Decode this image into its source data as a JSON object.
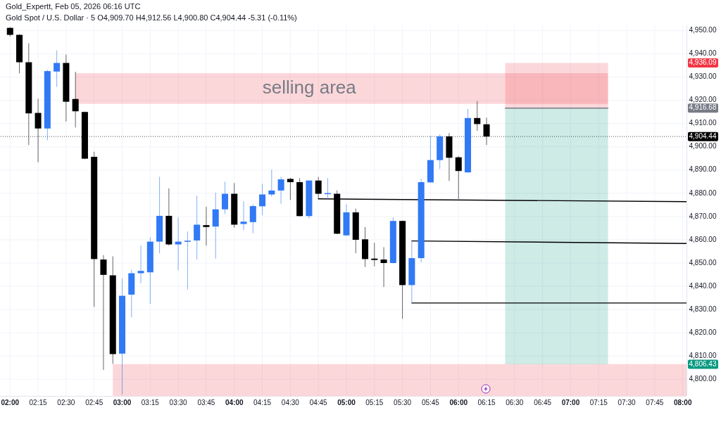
{
  "chart_data": {
    "type": "candlestick",
    "title": "Gold_Expertt, Feb 05, 2026 06:16 UTC",
    "subtitle": "Gold Spot / U.S. Dollar · 5  O4,909.70 H4,912.56 L4,900.80 C4,904.44 -5.31 (-0.11%)",
    "x": [
      "2026-02-05T02:00",
      "2026-02-05T02:05",
      "2026-02-05T02:10",
      "2026-02-05T02:15",
      "2026-02-05T02:20",
      "2026-02-05T02:25",
      "2026-02-05T02:30",
      "2026-02-05T02:35",
      "2026-02-05T02:40",
      "2026-02-05T02:45",
      "2026-02-05T02:50",
      "2026-02-05T02:55",
      "2026-02-05T03:00",
      "2026-02-05T03:05",
      "2026-02-05T03:10",
      "2026-02-05T03:15",
      "2026-02-05T03:20",
      "2026-02-05T03:25",
      "2026-02-05T03:30",
      "2026-02-05T03:35",
      "2026-02-05T03:40",
      "2026-02-05T03:45",
      "2026-02-05T03:50",
      "2026-02-05T03:55",
      "2026-02-05T04:00",
      "2026-02-05T04:05",
      "2026-02-05T04:10",
      "2026-02-05T04:15",
      "2026-02-05T04:20",
      "2026-02-05T04:25",
      "2026-02-05T04:30",
      "2026-02-05T04:35",
      "2026-02-05T04:40",
      "2026-02-05T04:45",
      "2026-02-05T04:50",
      "2026-02-05T04:55",
      "2026-02-05T05:00",
      "2026-02-05T05:05",
      "2026-02-05T05:10",
      "2026-02-05T05:15",
      "2026-02-05T05:20",
      "2026-02-05T05:25",
      "2026-02-05T05:30",
      "2026-02-05T05:35",
      "2026-02-05T05:40",
      "2026-02-05T05:45",
      "2026-02-05T05:50",
      "2026-02-05T05:55",
      "2026-02-05T06:00",
      "2026-02-05T06:05",
      "2026-02-05T06:10",
      "2026-02-05T06:15"
    ],
    "ohlc": [
      [
        4951.2,
        4951.5,
        4947.5,
        4948.2
      ],
      [
        4948.2,
        4948.5,
        4931.6,
        4936.4
      ],
      [
        4936.4,
        4944.6,
        4900.8,
        4914.4
      ],
      [
        4914.6,
        4920.7,
        4893.4,
        4907.9
      ],
      [
        4907.9,
        4933.2,
        4902.8,
        4932.6
      ],
      [
        4932.4,
        4941.5,
        4925.8,
        4936.1
      ],
      [
        4936.1,
        4939.7,
        4910.9,
        4919.4
      ],
      [
        4920.6,
        4932.3,
        4908.3,
        4915.3
      ],
      [
        4915.0,
        4915.2,
        4894.7,
        4894.9
      ],
      [
        4895.7,
        4897.9,
        4831.1,
        4851.7
      ],
      [
        4851.5,
        4853.4,
        4804.0,
        4844.9
      ],
      [
        4844.7,
        4852.9,
        4806.6,
        4810.8
      ],
      [
        4811.0,
        4843.4,
        4793.5,
        4835.9
      ],
      [
        4836.4,
        4847.1,
        4826.6,
        4845.6
      ],
      [
        4845.6,
        4857.5,
        4841.3,
        4846.6
      ],
      [
        4846.0,
        4861.1,
        4832.4,
        4859.2
      ],
      [
        4859.2,
        4887.1,
        4854.1,
        4870.3
      ],
      [
        4870.3,
        4882.1,
        4857.5,
        4858.0
      ],
      [
        4858.0,
        4869.6,
        4846.9,
        4859.2
      ],
      [
        4859.4,
        4863.6,
        4838.6,
        4859.6
      ],
      [
        4859.7,
        4879.0,
        4851.5,
        4866.5
      ],
      [
        4866.3,
        4874.2,
        4857.5,
        4865.5
      ],
      [
        4865.7,
        4880.3,
        4851.9,
        4873.1
      ],
      [
        4873.1,
        4885.0,
        4871.1,
        4879.8
      ],
      [
        4879.8,
        4884.4,
        4865.2,
        4866.5
      ],
      [
        4866.8,
        4876.6,
        4864.2,
        4867.8
      ],
      [
        4867.6,
        4875.2,
        4862.8,
        4874.5
      ],
      [
        4874.4,
        4884.1,
        4870.6,
        4879.5
      ],
      [
        4879.5,
        4890.2,
        4878.6,
        4881.2
      ],
      [
        4881.2,
        4887.1,
        4875.5,
        4886.0
      ],
      [
        4886.2,
        4886.6,
        4877.1,
        4884.8
      ],
      [
        4884.8,
        4886.5,
        4870.0,
        4870.2
      ],
      [
        4870.2,
        4885.5,
        4869.2,
        4885.5
      ],
      [
        4885.5,
        4887.1,
        4877.6,
        4879.8
      ],
      [
        4879.9,
        4886.5,
        4877.3,
        4880.1
      ],
      [
        4879.8,
        4881.3,
        4862.4,
        4862.6
      ],
      [
        4861.9,
        4875.2,
        4861.6,
        4871.8
      ],
      [
        4871.8,
        4873.4,
        4854.2,
        4860.0
      ],
      [
        4860.2,
        4865.5,
        4848.3,
        4851.7
      ],
      [
        4851.9,
        4858.7,
        4848.6,
        4851.3
      ],
      [
        4851.5,
        4856.8,
        4839.7,
        4850.0
      ],
      [
        4850.0,
        4869.6,
        4849.8,
        4868.1
      ],
      [
        4868.1,
        4868.3,
        4826.0,
        4840.5
      ],
      [
        4840.5,
        4859.5,
        4832.8,
        4852.1
      ],
      [
        4852.1,
        4886.3,
        4850.3,
        4884.8
      ],
      [
        4884.7,
        4904.7,
        4884.5,
        4894.3
      ],
      [
        4894.3,
        4905.4,
        4890.5,
        4904.5
      ],
      [
        4904.5,
        4905.9,
        4885.3,
        4895.3
      ],
      [
        4895.5,
        4896.0,
        4877.6,
        4889.6
      ],
      [
        4889.0,
        4916.3,
        4888.8,
        4912.4
      ],
      [
        4912.4,
        4919.7,
        4906.9,
        4909.8
      ],
      [
        4909.7,
        4912.56,
        4900.8,
        4904.44
      ]
    ],
    "colors": [
      "#000000",
      "#000000",
      "#000000",
      "#000000",
      "#3179f5",
      "#3179f5",
      "#000000",
      "#000000",
      "#000000",
      "#000000",
      "#000000",
      "#000000",
      "#3179f5",
      "#3179f5",
      "#3179f5",
      "#3179f5",
      "#3179f5",
      "#000000",
      "#3179f5",
      "#3179f5",
      "#3179f5",
      "#000000",
      "#3179f5",
      "#3179f5",
      "#000000",
      "#3179f5",
      "#3179f5",
      "#3179f5",
      "#3179f5",
      "#3179f5",
      "#000000",
      "#000000",
      "#3179f5",
      "#000000",
      "#3179f5",
      "#000000",
      "#3179f5",
      "#000000",
      "#000000",
      "#000000",
      "#000000",
      "#3179f5",
      "#000000",
      "#3179f5",
      "#3179f5",
      "#3179f5",
      "#3179f5",
      "#000000",
      "#000000",
      "#3179f5",
      "#000000",
      "#000000"
    ],
    "series": [
      {
        "type": "line",
        "color": "#f23645",
        "x": [
          "2026-02-05T02:35",
          "2026-02-05T07:20"
        ],
        "values": [
          null,
          null
        ],
        "lower": [
          4918.5,
          4918.5
        ],
        "upper": [
          4931.7,
          4931.7
        ]
      },
      {
        "type": "line",
        "color": "#f23645",
        "x": [
          "2026-02-05T02:55",
          "2026-02-05T08:02"
        ],
        "values": [
          null,
          null
        ],
        "lower": [
          4792.8,
          4792.8
        ],
        "upper": [
          4806.5,
          4806.5
        ]
      },
      {
        "type": "line",
        "color": "#f23645",
        "x": [
          "2026-02-05T06:25",
          "2026-02-05T07:20"
        ],
        "values": [
          null,
          null
        ],
        "lower": [
          4916.68,
          4916.68
        ],
        "upper": [
          4936.09,
          4936.09
        ]
      },
      {
        "type": "line",
        "color": "#787b86",
        "x": [
          "2026-02-05T06:25",
          "2026-02-05T07:20"
        ],
        "values": [
          4916.68,
          4916.68
        ]
      },
      {
        "type": "line",
        "color": "#089981",
        "x": [
          "2026-02-05T06:25",
          "2026-02-05T07:20"
        ],
        "values": [
          null,
          null
        ],
        "lower": [
          4806.43,
          4806.43
        ],
        "upper": [
          4916.68,
          4916.68
        ]
      },
      {
        "type": "line",
        "color": "#000000",
        "x": [
          "2026-02-05T04:45",
          "2026-02-05T08:02"
        ],
        "values": [
          4877.6,
          4876.4
        ]
      },
      {
        "type": "line",
        "color": "#000000",
        "x": [
          "2026-02-05T05:35",
          "2026-02-05T08:02"
        ],
        "values": [
          4859.5,
          4858.4
        ]
      },
      {
        "type": "line",
        "color": "#000000",
        "x": [
          "2026-02-05T05:35",
          "2026-02-05T08:02"
        ],
        "values": [
          4832.8,
          4832.8
        ]
      }
    ],
    "ref_lines": [
      {
        "axis": "y",
        "value": 4904.44,
        "label": "4,904.44",
        "color": "#000000",
        "line_style": "dotted"
      }
    ],
    "annotations": [
      "selling area",
      {
        "text": "4,936.09",
        "y": 4936.09
      },
      {
        "text": "4,916.68",
        "y": 4916.68
      },
      {
        "text": "4,806.43",
        "y": 4806.43
      }
    ],
    "xlim": [
      "2026-02-05T01:55",
      "2026-02-05T08:02"
    ],
    "xticks": [
      {
        "value": "2026-02-05T02:00",
        "label": "02:00"
      },
      {
        "value": "2026-02-05T02:15",
        "label": "02:15"
      },
      {
        "value": "2026-02-05T02:30",
        "label": "02:30"
      },
      {
        "value": "2026-02-05T02:45",
        "label": "02:45"
      },
      {
        "value": "2026-02-05T03:00",
        "label": "03:00"
      },
      {
        "value": "2026-02-05T03:15",
        "label": "03:15"
      },
      {
        "value": "2026-02-05T03:30",
        "label": "03:30"
      },
      {
        "value": "2026-02-05T03:45",
        "label": "03:45"
      },
      {
        "value": "2026-02-05T04:00",
        "label": "04:00"
      },
      {
        "value": "2026-02-05T04:15",
        "label": "04:15"
      },
      {
        "value": "2026-02-05T04:30",
        "label": "04:30"
      },
      {
        "value": "2026-02-05T04:45",
        "label": "04:45"
      },
      {
        "value": "2026-02-05T05:00",
        "label": "05:00"
      },
      {
        "value": "2026-02-05T05:15",
        "label": "05:15"
      },
      {
        "value": "2026-02-05T05:30",
        "label": "05:30"
      },
      {
        "value": "2026-02-05T05:45",
        "label": "05:45"
      },
      {
        "value": "2026-02-05T06:00",
        "label": "06:00"
      },
      {
        "value": "2026-02-05T06:15",
        "label": "06:15"
      },
      {
        "value": "2026-02-05T06:30",
        "label": "06:30"
      },
      {
        "value": "2026-02-05T06:45",
        "label": "06:45"
      },
      {
        "value": "2026-02-05T07:00",
        "label": "07:00"
      },
      {
        "value": "2026-02-05T07:15",
        "label": "07:15"
      },
      {
        "value": "2026-02-05T07:30",
        "label": "07:30"
      },
      {
        "value": "2026-02-05T07:45",
        "label": "07:45"
      },
      {
        "value": "2026-02-05T08:00",
        "label": "08:00"
      }
    ],
    "ylim": [
      4792.8,
      4952.3
    ],
    "yticks": [
      {
        "value": 4800,
        "label": "4,800.00"
      },
      {
        "value": 4810,
        "label": "4,810.00"
      },
      {
        "value": 4820,
        "label": "4,820.00"
      },
      {
        "value": 4830,
        "label": "4,830.00"
      },
      {
        "value": 4840,
        "label": "4,840.00"
      },
      {
        "value": 4850,
        "label": "4,850.00"
      },
      {
        "value": 4860,
        "label": "4,860.00"
      },
      {
        "value": 4870,
        "label": "4,870.00"
      },
      {
        "value": 4880,
        "label": "4,880.00"
      },
      {
        "value": 4890,
        "label": "4,890.00"
      },
      {
        "value": 4900,
        "label": "4,900.00"
      },
      {
        "value": 4910,
        "label": "4,910.00"
      },
      {
        "value": 4920,
        "label": "4,920.00"
      },
      {
        "value": 4930,
        "label": "4,930.00"
      },
      {
        "value": 4940,
        "label": "4,940.00"
      },
      {
        "value": 4950,
        "label": "4,950.00"
      }
    ],
    "grid": true
  }
}
